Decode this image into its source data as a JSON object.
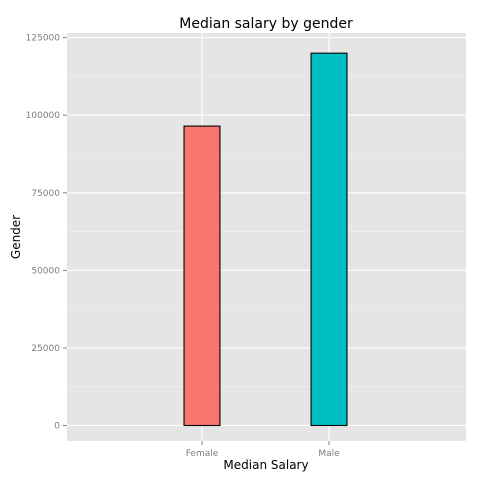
{
  "chart_data": {
    "type": "bar",
    "title": "Median salary by gender",
    "xlabel": "Median Salary",
    "ylabel": "Gender",
    "categories": [
      "Female",
      "Male"
    ],
    "values": [
      96500,
      120000
    ],
    "colors": [
      "#F8766D",
      "#00BFC4"
    ],
    "ylim": [
      -5000,
      126500
    ],
    "yticks": [
      0,
      25000,
      50000,
      75000,
      100000,
      125000
    ],
    "ytick_labels": [
      "0",
      "25000",
      "50000",
      "75000",
      "100000",
      "125000"
    ],
    "grid": true,
    "panel_background": "#E5E5E5",
    "grid_color": "#FFFFFF",
    "legend": "none"
  }
}
